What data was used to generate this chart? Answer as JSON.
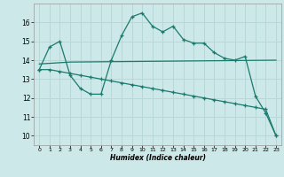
{
  "xlabel": "Humidex (Indice chaleur)",
  "bg_color": "#cce8e8",
  "grid_color": "#b8d8d8",
  "line_color": "#1a7a6e",
  "line1_x": [
    0,
    1,
    2,
    3,
    4,
    5,
    6,
    7,
    8,
    9,
    10,
    11,
    12,
    13,
    14,
    15,
    16,
    17,
    18,
    19,
    20,
    21,
    22,
    23
  ],
  "line1_y": [
    13.5,
    14.7,
    15.0,
    13.2,
    12.5,
    12.2,
    12.2,
    14.0,
    15.3,
    16.3,
    16.5,
    15.8,
    15.5,
    15.8,
    15.1,
    14.9,
    14.9,
    14.4,
    14.1,
    14.0,
    14.2,
    12.1,
    11.2,
    10.0
  ],
  "line2_x": [
    0,
    3,
    23
  ],
  "line2_y": [
    13.8,
    13.9,
    14.0
  ],
  "line3_x": [
    0,
    1,
    2,
    3,
    4,
    5,
    6,
    7,
    8,
    9,
    10,
    11,
    12,
    13,
    14,
    15,
    16,
    17,
    18,
    19,
    20,
    21,
    22,
    23
  ],
  "line3_y": [
    13.5,
    13.5,
    13.4,
    13.3,
    13.2,
    13.1,
    13.0,
    12.9,
    12.8,
    12.7,
    12.6,
    12.5,
    12.4,
    12.3,
    12.2,
    12.1,
    12.0,
    11.9,
    11.8,
    11.7,
    11.6,
    11.5,
    11.4,
    10.0
  ],
  "ylim": [
    9.5,
    17.0
  ],
  "xlim": [
    -0.5,
    23.5
  ],
  "yticks": [
    10,
    11,
    12,
    13,
    14,
    15,
    16
  ],
  "xticks": [
    0,
    1,
    2,
    3,
    4,
    5,
    6,
    7,
    8,
    9,
    10,
    11,
    12,
    13,
    14,
    15,
    16,
    17,
    18,
    19,
    20,
    21,
    22,
    23
  ]
}
